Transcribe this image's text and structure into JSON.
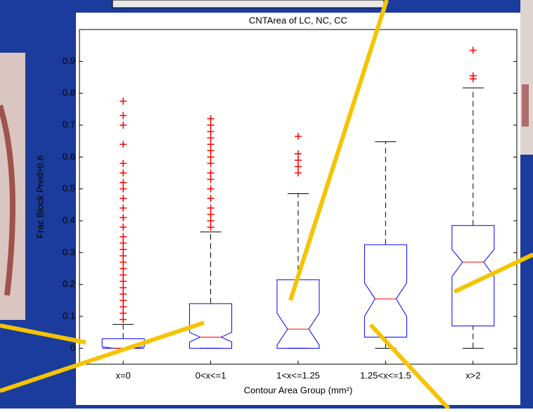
{
  "chart_data": {
    "type": "boxplot",
    "title": "CNTArea of LC, NC, CC",
    "x_label": "Contour Area Group (mm²)",
    "y_label": "Frac Block Pred>0.6",
    "categories": [
      "x=0",
      "0<x<=1",
      "1<x<=1.25",
      "1.25<x<=1.5",
      "x>2"
    ],
    "box_color": "#0000ff",
    "median_color": "#ff0000",
    "outlier_color": "#ff0000",
    "whisker_color": "#000000",
    "boxes": [
      {
        "whisker_low": 0,
        "q1": 0,
        "median": 0,
        "q3": 0.03,
        "whisker_high": 0.075,
        "notch": [
          0,
          0.005
        ],
        "outliers": [
          0.09,
          0.11,
          0.13,
          0.15,
          0.17,
          0.19,
          0.21,
          0.23,
          0.25,
          0.27,
          0.29,
          0.31,
          0.33,
          0.35,
          0.38,
          0.41,
          0.44,
          0.47,
          0.5,
          0.52,
          0.55,
          0.58,
          0.64,
          0.7,
          0.73,
          0.775
        ]
      },
      {
        "whisker_low": 0,
        "q1": 0,
        "median": 0.035,
        "q3": 0.14,
        "whisker_high": 0.365,
        "notch": [
          0.02,
          0.05
        ],
        "outliers": [
          0.38,
          0.4,
          0.42,
          0.44,
          0.47,
          0.5,
          0.53,
          0.55,
          0.58,
          0.6,
          0.62,
          0.64,
          0.66,
          0.68,
          0.7,
          0.72
        ]
      },
      {
        "whisker_low": 0,
        "q1": 0,
        "median": 0.06,
        "q3": 0.215,
        "whisker_high": 0.485,
        "notch": [
          0.01,
          0.11
        ],
        "outliers": [
          0.55,
          0.57,
          0.59,
          0.61,
          0.665
        ]
      },
      {
        "whisker_low": 0,
        "q1": 0.035,
        "median": 0.155,
        "q3": 0.325,
        "whisker_high": 0.648,
        "notch": [
          0.1,
          0.205
        ],
        "outliers": []
      },
      {
        "whisker_low": 0,
        "q1": 0.07,
        "median": 0.27,
        "q3": 0.385,
        "whisker_high": 0.817,
        "notch": [
          0.225,
          0.31
        ],
        "outliers": [
          0.845,
          0.855,
          0.935
        ]
      }
    ],
    "ylim": [
      -0.05,
      1
    ],
    "yticks": [
      0,
      0.1,
      0.2,
      0.3,
      0.4,
      0.5,
      0.6,
      0.7,
      0.8,
      0.9
    ]
  }
}
